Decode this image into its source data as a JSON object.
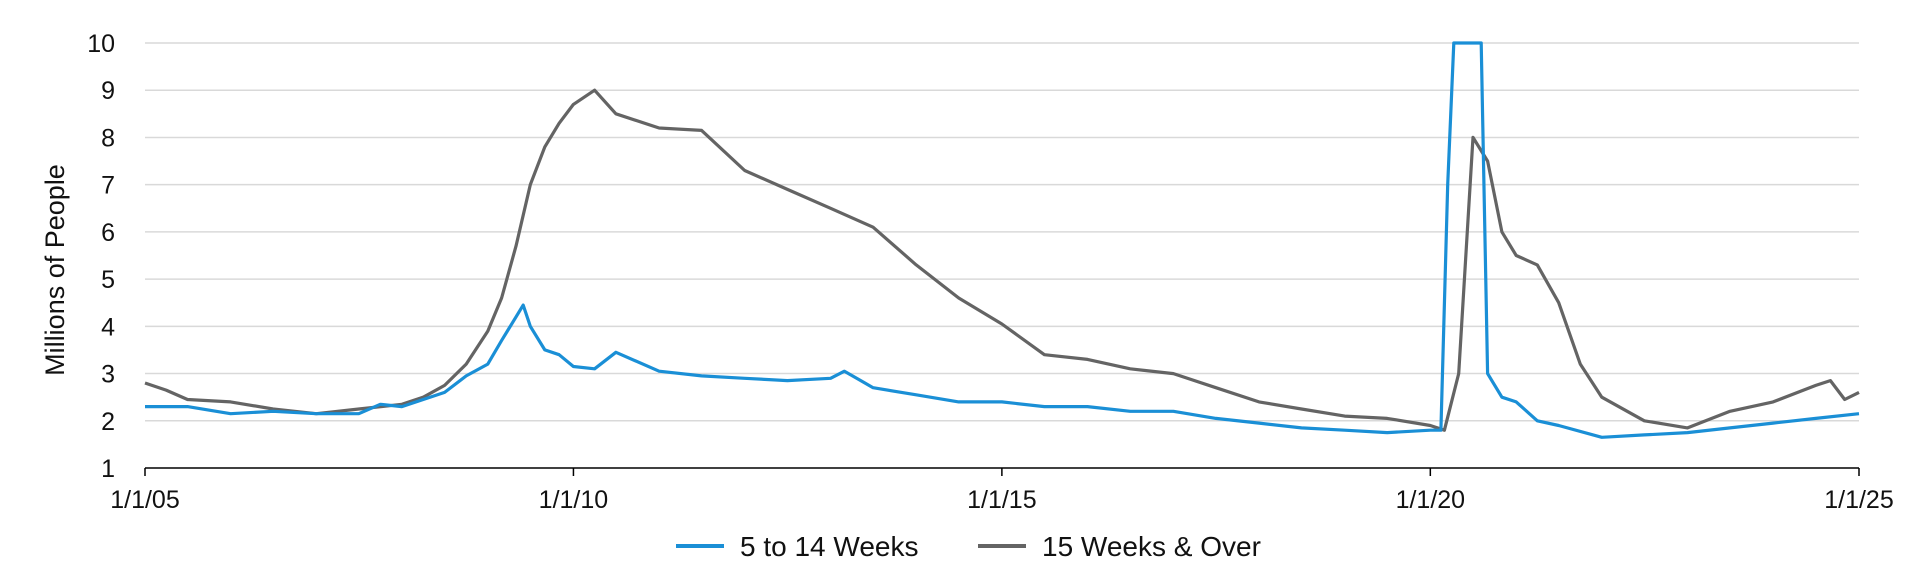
{
  "chart_data": {
    "type": "line",
    "title": "",
    "xlabel": "",
    "ylabel": "Millions of People",
    "ylim": [
      1,
      10
    ],
    "xlim": [
      "2005-01-01",
      "2025-01-01"
    ],
    "x_tick_labels": [
      "1/1/05",
      "1/1/10",
      "1/1/15",
      "1/1/20",
      "1/1/25"
    ],
    "x_tick_dates": [
      "2005-01-01",
      "2010-01-01",
      "2015-01-01",
      "2020-01-01",
      "2025-01-01"
    ],
    "y_ticks": [
      1,
      2,
      3,
      4,
      5,
      6,
      7,
      8,
      9,
      10
    ],
    "grid": "horizontal",
    "legend_position": "bottom",
    "series": [
      {
        "name": "5 to 14 Weeks",
        "color": "#1a8fd6",
        "points": [
          [
            "2005-01-01",
            2.3
          ],
          [
            "2005-07-01",
            2.3
          ],
          [
            "2006-01-01",
            2.15
          ],
          [
            "2006-07-01",
            2.2
          ],
          [
            "2007-01-01",
            2.15
          ],
          [
            "2007-07-01",
            2.15
          ],
          [
            "2007-10-01",
            2.35
          ],
          [
            "2008-01-01",
            2.3
          ],
          [
            "2008-07-01",
            2.6
          ],
          [
            "2008-10-01",
            2.95
          ],
          [
            "2009-01-01",
            3.2
          ],
          [
            "2009-03-01",
            3.7
          ],
          [
            "2009-05-01",
            4.2
          ],
          [
            "2009-06-01",
            4.45
          ],
          [
            "2009-07-01",
            4.0
          ],
          [
            "2009-09-01",
            3.5
          ],
          [
            "2009-11-01",
            3.4
          ],
          [
            "2010-01-01",
            3.15
          ],
          [
            "2010-04-01",
            3.1
          ],
          [
            "2010-07-01",
            3.45
          ],
          [
            "2011-01-01",
            3.05
          ],
          [
            "2011-07-01",
            2.95
          ],
          [
            "2012-01-01",
            2.9
          ],
          [
            "2012-07-01",
            2.85
          ],
          [
            "2013-01-01",
            2.9
          ],
          [
            "2013-03-01",
            3.05
          ],
          [
            "2013-07-01",
            2.7
          ],
          [
            "2014-01-01",
            2.55
          ],
          [
            "2014-07-01",
            2.4
          ],
          [
            "2015-01-01",
            2.4
          ],
          [
            "2015-07-01",
            2.3
          ],
          [
            "2016-01-01",
            2.3
          ],
          [
            "2016-07-01",
            2.2
          ],
          [
            "2017-01-01",
            2.2
          ],
          [
            "2017-07-01",
            2.05
          ],
          [
            "2018-01-01",
            1.95
          ],
          [
            "2018-07-01",
            1.85
          ],
          [
            "2019-01-01",
            1.8
          ],
          [
            "2019-07-01",
            1.75
          ],
          [
            "2020-01-01",
            1.8
          ],
          [
            "2020-02-15",
            1.8
          ],
          [
            "2020-03-15",
            7.0
          ],
          [
            "2020-04-10",
            10.0
          ],
          [
            "2020-08-05",
            10.0
          ],
          [
            "2020-09-01",
            3.0
          ],
          [
            "2020-11-01",
            2.5
          ],
          [
            "2021-01-01",
            2.4
          ],
          [
            "2021-04-01",
            2.0
          ],
          [
            "2021-07-01",
            1.9
          ],
          [
            "2022-01-01",
            1.65
          ],
          [
            "2022-07-01",
            1.7
          ],
          [
            "2023-01-01",
            1.75
          ],
          [
            "2023-07-01",
            1.85
          ],
          [
            "2024-01-01",
            1.95
          ],
          [
            "2024-07-01",
            2.05
          ],
          [
            "2025-01-01",
            2.15
          ]
        ]
      },
      {
        "name": "15 Weeks & Over",
        "color": "#646464",
        "points": [
          [
            "2005-01-01",
            2.8
          ],
          [
            "2005-04-01",
            2.65
          ],
          [
            "2005-07-01",
            2.45
          ],
          [
            "2006-01-01",
            2.4
          ],
          [
            "2006-07-01",
            2.25
          ],
          [
            "2007-01-01",
            2.15
          ],
          [
            "2007-07-01",
            2.25
          ],
          [
            "2008-01-01",
            2.35
          ],
          [
            "2008-04-01",
            2.5
          ],
          [
            "2008-07-01",
            2.75
          ],
          [
            "2008-10-01",
            3.2
          ],
          [
            "2009-01-01",
            3.9
          ],
          [
            "2009-03-01",
            4.6
          ],
          [
            "2009-05-01",
            5.7
          ],
          [
            "2009-07-01",
            7.0
          ],
          [
            "2009-09-01",
            7.8
          ],
          [
            "2009-11-01",
            8.3
          ],
          [
            "2010-01-01",
            8.7
          ],
          [
            "2010-04-01",
            9.0
          ],
          [
            "2010-07-01",
            8.5
          ],
          [
            "2011-01-01",
            8.2
          ],
          [
            "2011-07-01",
            8.15
          ],
          [
            "2012-01-01",
            7.3
          ],
          [
            "2012-07-01",
            6.9
          ],
          [
            "2013-01-01",
            6.5
          ],
          [
            "2013-07-01",
            6.1
          ],
          [
            "2014-01-01",
            5.3
          ],
          [
            "2014-07-01",
            4.6
          ],
          [
            "2015-01-01",
            4.05
          ],
          [
            "2015-07-01",
            3.4
          ],
          [
            "2016-01-01",
            3.3
          ],
          [
            "2016-07-01",
            3.1
          ],
          [
            "2017-01-01",
            3.0
          ],
          [
            "2017-07-01",
            2.7
          ],
          [
            "2018-01-01",
            2.4
          ],
          [
            "2018-07-01",
            2.25
          ],
          [
            "2019-01-01",
            2.1
          ],
          [
            "2019-07-01",
            2.05
          ],
          [
            "2020-01-01",
            1.9
          ],
          [
            "2020-03-01",
            1.8
          ],
          [
            "2020-05-01",
            3.0
          ],
          [
            "2020-07-01",
            8.0
          ],
          [
            "2020-09-01",
            7.5
          ],
          [
            "2020-11-01",
            6.0
          ],
          [
            "2021-01-01",
            5.5
          ],
          [
            "2021-04-01",
            5.3
          ],
          [
            "2021-07-01",
            4.5
          ],
          [
            "2021-10-01",
            3.2
          ],
          [
            "2022-01-01",
            2.5
          ],
          [
            "2022-07-01",
            2.0
          ],
          [
            "2023-01-01",
            1.85
          ],
          [
            "2023-07-01",
            2.2
          ],
          [
            "2024-01-01",
            2.4
          ],
          [
            "2024-07-01",
            2.75
          ],
          [
            "2024-09-01",
            2.85
          ],
          [
            "2024-11-01",
            2.45
          ],
          [
            "2025-01-01",
            2.6
          ]
        ]
      }
    ]
  }
}
